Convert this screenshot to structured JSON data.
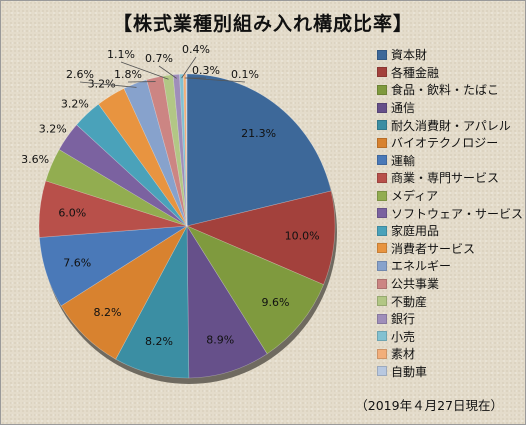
{
  "title": "【株式業種別組み入れ構成比率】",
  "as_of": "（2019年４月27日現在）",
  "chart_data": {
    "type": "pie",
    "title": "【株式業種別組み入れ構成比率】",
    "categories": [
      "資本財",
      "各種金融",
      "食品・飲料・たばこ",
      "通信",
      "耐久消費財・アパレル",
      "バイオテクノロジー",
      "運輸",
      "商業・専門サービス",
      "メディア",
      "ソフトウェア・サービス",
      "家庭用品",
      "消費者サービス",
      "エネルギー",
      "公共事業",
      "不動産",
      "銀行",
      "小売",
      "素材",
      "自動車"
    ],
    "values": [
      21.3,
      10.0,
      9.6,
      8.9,
      8.2,
      8.2,
      7.6,
      6.0,
      3.6,
      3.2,
      3.2,
      3.2,
      2.6,
      1.8,
      1.1,
      0.7,
      0.4,
      0.3,
      0.1
    ],
    "labels": [
      "21.3%",
      "10.0%",
      "9.6%",
      "8.9%",
      "8.2%",
      "8.2%",
      "7.6%",
      "6.0%",
      "3.6%",
      "3.2%",
      "3.2%",
      "3.2%",
      "2.6%",
      "1.8%",
      "1.1%",
      "0.7%",
      "0.4%",
      "0.3%",
      "0.1%"
    ],
    "colors": [
      "#3d6899",
      "#a3413c",
      "#7f9a3e",
      "#66508a",
      "#3b8ea3",
      "#d8822f",
      "#4a79b8",
      "#b8504a",
      "#92ad50",
      "#7b62a0",
      "#4aa2ba",
      "#e89440",
      "#87a2cc",
      "#cc8583",
      "#b2c785",
      "#9f8eba",
      "#82c1d1",
      "#f2ae7a",
      "#b8c8e0"
    ],
    "legend_position": "right"
  }
}
